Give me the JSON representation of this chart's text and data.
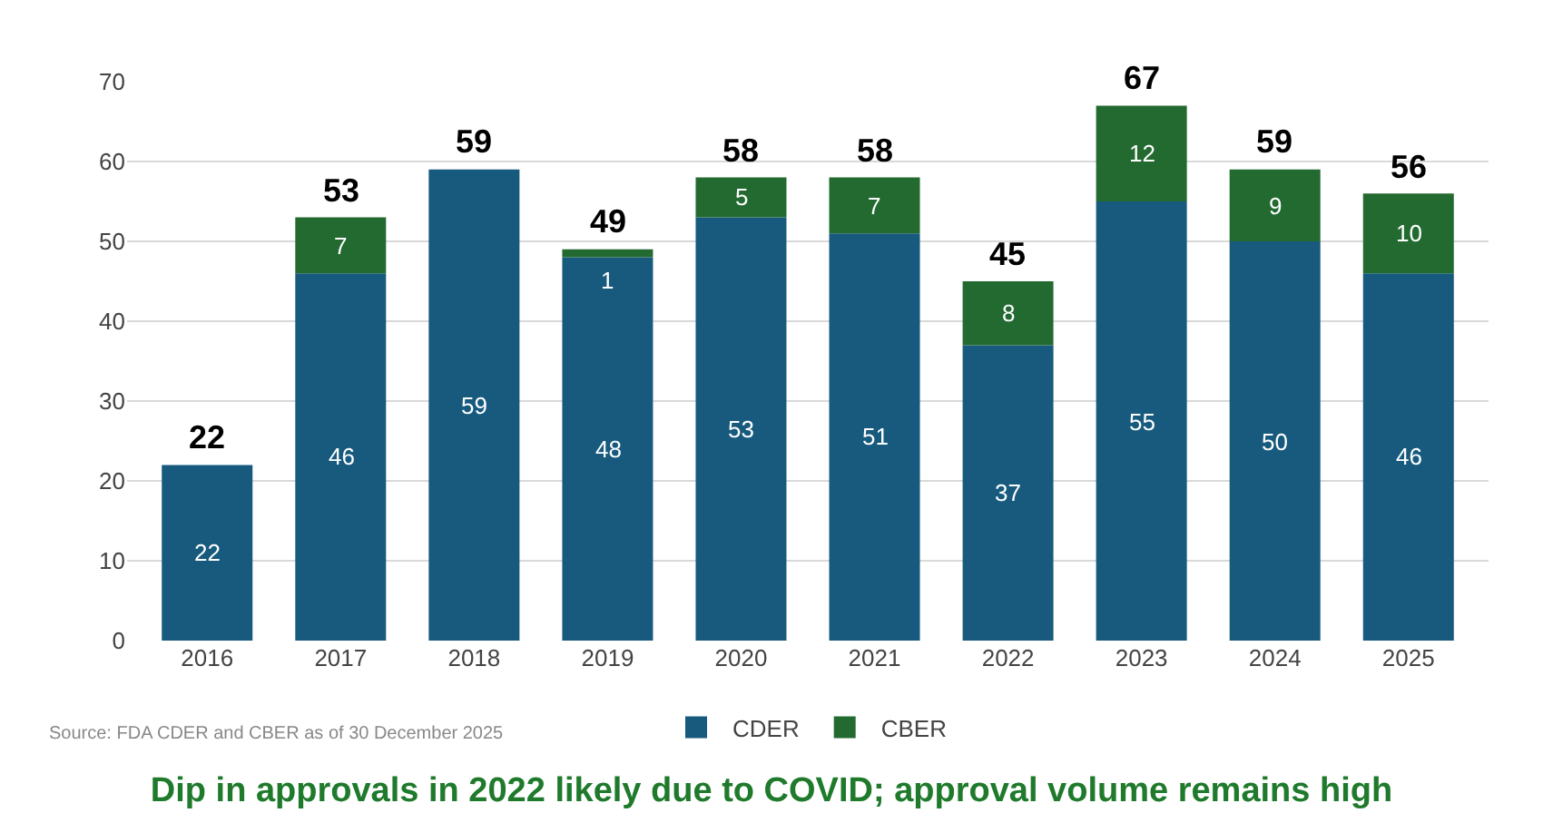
{
  "chart_data": {
    "type": "bar",
    "stacked": true,
    "title": "Dip in approvals in 2022 likely due to COVID; approval volume remains high",
    "categories": [
      "2016",
      "2017",
      "2018",
      "2019",
      "2020",
      "2021",
      "2022",
      "2023",
      "2024",
      "2025"
    ],
    "series": [
      {
        "name": "CDER",
        "color": "#175a7e",
        "values": [
          22,
          46,
          59,
          48,
          53,
          51,
          37,
          55,
          50,
          46
        ]
      },
      {
        "name": "CBER",
        "color": "#236a31",
        "values": [
          null,
          7,
          null,
          1,
          5,
          7,
          8,
          12,
          9,
          10
        ]
      }
    ],
    "totals": [
      "22",
      "53",
      "59",
      "49",
      "58",
      "58",
      "45",
      "67",
      "59",
      "56"
    ],
    "data_labels": true,
    "ylim": [
      0,
      70
    ],
    "yticks": [
      0,
      10,
      20,
      30,
      40,
      50,
      60,
      70
    ],
    "grid": "y",
    "legend": "bottom",
    "annotations": [
      "Source: FDA CDER and CBER as of 30 December 2025"
    ]
  }
}
